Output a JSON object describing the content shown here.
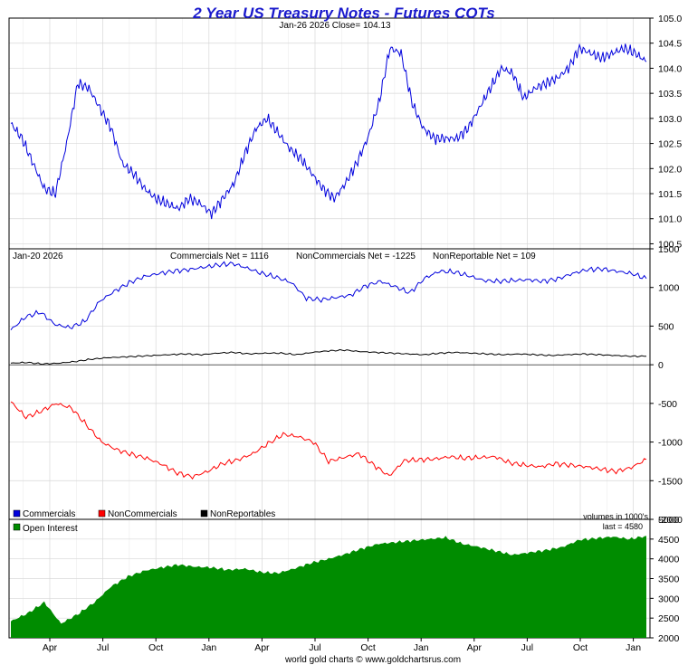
{
  "header": {
    "title": "2 Year US Treasury Notes - Futures COTs",
    "subtitle": "Jan-26  2026   Close= 104.13",
    "footer": "world gold charts © www.goldchartsrus.com"
  },
  "colors": {
    "price": "#0000dd",
    "commercials": "#0000dd",
    "noncommercials": "#ff0000",
    "nonreportables": "#000000",
    "open_interest": "#008c00",
    "grid": "#d8d8d8",
    "title": "#1a1acc"
  },
  "chart_data": [
    {
      "type": "line",
      "panel": "price",
      "x_labels": [
        "Apr",
        "Jul",
        "Oct",
        "Jan",
        "Apr",
        "Jul",
        "Oct",
        "Jan",
        "Apr",
        "Jul",
        "Oct",
        "Jan"
      ],
      "ylim": [
        100.4,
        105.0
      ],
      "yticks": [
        "105.0",
        "104.5",
        "104.0",
        "103.5",
        "103.0",
        "102.5",
        "102.0",
        "101.5",
        "101.0",
        "100.5"
      ],
      "series": [
        {
          "name": "Price",
          "values": [
            102.9,
            102.6,
            102.1,
            101.6,
            101.5,
            102.5,
            103.7,
            103.6,
            103.2,
            102.8,
            102.1,
            101.9,
            101.6,
            101.4,
            101.3,
            101.2,
            101.4,
            101.3,
            101.1,
            101.4,
            101.7,
            102.3,
            102.8,
            103.0,
            102.7,
            102.4,
            102.2,
            101.9,
            101.6,
            101.4,
            101.7,
            102.1,
            102.6,
            103.3,
            104.4,
            104.3,
            103.3,
            102.8,
            102.6,
            102.6,
            102.6,
            102.8,
            103.2,
            103.6,
            104.0,
            103.9,
            103.4,
            103.6,
            103.7,
            103.8,
            104.0,
            104.4,
            104.3,
            104.2,
            104.3,
            104.4,
            104.3,
            104.13
          ]
        }
      ]
    },
    {
      "type": "line",
      "panel": "cot",
      "date_label": "Jan-20  2026",
      "stats": [
        "Commercials Net = 1116",
        "NonCommercials Net = -1225",
        "NonReportable Net = 109"
      ],
      "ylim": [
        -2000,
        1500
      ],
      "yticks": [
        "1500",
        "1000",
        "500",
        "0",
        "-500",
        "-1000",
        "-1500",
        "-2000"
      ],
      "series": [
        {
          "name": "Commercials",
          "values": [
            450,
            620,
            680,
            520,
            480,
            560,
            820,
            950,
            1060,
            1140,
            1180,
            1210,
            1230,
            1260,
            1290,
            1310,
            1250,
            1180,
            1130,
            1060,
            860,
            840,
            870,
            900,
            1020,
            1080,
            1010,
            930,
            1120,
            1210,
            1200,
            1150,
            1090,
            1080,
            1090,
            1100,
            1080,
            1110,
            1180,
            1230,
            1240,
            1210,
            1180,
            1116
          ]
        },
        {
          "name": "NonCommercials",
          "values": [
            -480,
            -680,
            -600,
            -500,
            -560,
            -780,
            -1000,
            -1100,
            -1160,
            -1210,
            -1290,
            -1400,
            -1450,
            -1380,
            -1280,
            -1230,
            -1150,
            -1020,
            -900,
            -930,
            -1000,
            -1250,
            -1200,
            -1150,
            -1300,
            -1440,
            -1240,
            -1230,
            -1220,
            -1190,
            -1210,
            -1200,
            -1190,
            -1270,
            -1300,
            -1320,
            -1280,
            -1300,
            -1320,
            -1350,
            -1380,
            -1330,
            -1225
          ]
        },
        {
          "name": "NonReportables",
          "values": [
            20,
            30,
            10,
            20,
            40,
            70,
            90,
            100,
            110,
            120,
            130,
            140,
            130,
            150,
            160,
            140,
            150,
            150,
            130,
            160,
            180,
            190,
            170,
            160,
            150,
            140,
            130,
            150,
            160,
            150,
            140,
            130,
            140,
            130,
            120,
            130,
            140,
            130,
            120,
            110,
            109
          ]
        }
      ]
    },
    {
      "type": "area",
      "panel": "open_interest",
      "label": "Open Interest",
      "unit_note": "volumes in 1000's",
      "last_note": "last = 4580",
      "ylim": [
        2000,
        5000
      ],
      "yticks": [
        "5000",
        "4500",
        "4000",
        "3500",
        "3000",
        "2500",
        "2000"
      ],
      "series": [
        {
          "name": "Open Interest",
          "values": [
            2420,
            2620,
            2900,
            2360,
            2600,
            2900,
            3300,
            3550,
            3700,
            3780,
            3850,
            3800,
            3780,
            3720,
            3750,
            3660,
            3640,
            3760,
            3900,
            4000,
            4120,
            4260,
            4380,
            4420,
            4460,
            4500,
            4540,
            4380,
            4300,
            4200,
            4100,
            4160,
            4220,
            4300,
            4480,
            4520,
            4560,
            4500,
            4580
          ]
        }
      ]
    }
  ],
  "legend": [
    "Commercials",
    "NonCommercials",
    "NonReportables"
  ]
}
